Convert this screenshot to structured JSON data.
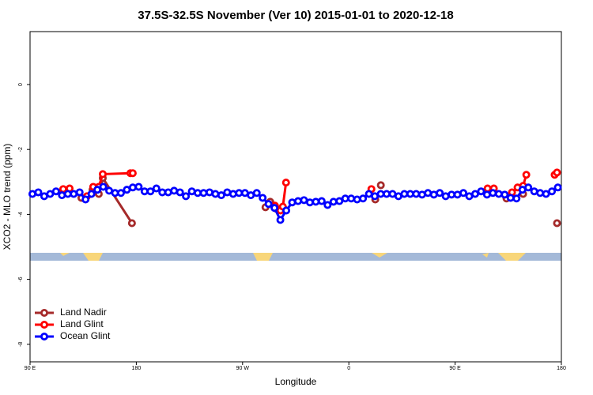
{
  "chart_data": {
    "type": "line",
    "title": "37.5S-32.5S November (Ver 10)   2015-01-01 to 2020-12-18",
    "x_label": "Longitude",
    "y_label": "XCO2 - MLO trend (ppm)",
    "xlim": [
      90,
      540
    ],
    "ylim": [
      -8.54,
      1.63
    ],
    "xticks": [
      {
        "value": 90,
        "label": "90 E"
      },
      180,
      {
        "value": 270,
        "label": "90 W"
      },
      {
        "value": 360,
        "label": "0"
      },
      {
        "value": 450,
        "label": "90 E"
      },
      {
        "value": 540,
        "label": "180"
      }
    ],
    "yticks": [
      0,
      -2,
      -4,
      -6,
      -8
    ],
    "legend": "bottom-left",
    "series": [
      {
        "name": "Land Nadir",
        "color": "#a52a2a",
        "x": [
          118.1,
          null,
          133.5,
          null,
          142.9,
          null,
          148.2,
          151.6,
          176.3,
          null,
          289.4,
          null,
          293.4,
          null,
          298.8,
          null,
          305.5,
          null,
          382.4,
          null,
          387.1,
          null,
          493.5,
          null,
          507.6,
          null,
          536.3
        ],
        "values": [
          -3.24,
          null,
          -3.49,
          null,
          -3.24,
          null,
          -3.37,
          -2.88,
          -4.27,
          null,
          -3.78,
          null,
          -3.61,
          null,
          -3.83,
          null,
          -3.85,
          null,
          -3.54,
          null,
          -3.1,
          null,
          -3.51,
          null,
          -3.37,
          null,
          -4.27
        ]
      },
      {
        "name": "Land Glint",
        "color": "#ff0000",
        "x": [
          118.1,
          null,
          123.5,
          null,
          138.2,
          null,
          143.5,
          null,
          148.2,
          151.6,
          175,
          177,
          null,
          292.1,
          null,
          297.4,
          null,
          302.1,
          null,
          304.1,
          306.8,
          null,
          379.1,
          null,
          477.5,
          null,
          482.8,
          null,
          498.2,
          null,
          502.9,
          null,
          507.6,
          510.3,
          null,
          534.3,
          536.3
        ],
        "values": [
          -3.22,
          null,
          -3.2,
          null,
          -3.44,
          null,
          -3.15,
          null,
          -3.15,
          -2.76,
          -2.73,
          -2.73,
          null,
          -3.68,
          null,
          -3.73,
          null,
          -3.88,
          null,
          -3.76,
          -3.02,
          null,
          -3.22,
          null,
          -3.2,
          null,
          -3.2,
          null,
          -3.32,
          null,
          -3.17,
          null,
          -3.12,
          -2.78,
          null,
          -2.78,
          -2.71
        ]
      },
      {
        "name": "Ocean Glint",
        "color": "#0000ff",
        "x": [
          92,
          97,
          102,
          107,
          112,
          117,
          122,
          127,
          132,
          137,
          142,
          147,
          152,
          157,
          162,
          167,
          172,
          177,
          182,
          187,
          192,
          197,
          202,
          207,
          212,
          217,
          222,
          227,
          232,
          237,
          242,
          247,
          252,
          257,
          262,
          267,
          272,
          277,
          282,
          287,
          292,
          297,
          302,
          307,
          312,
          317,
          322,
          327,
          332,
          337,
          342,
          347,
          352,
          357,
          362,
          367,
          372,
          377,
          382,
          387,
          392,
          397,
          402,
          407,
          412,
          417,
          422,
          427,
          432,
          437,
          442,
          447,
          452,
          457,
          462,
          467,
          472,
          477,
          482,
          487,
          492,
          497,
          502,
          507,
          512,
          517,
          522,
          527,
          532,
          537
        ],
        "values": [
          -3.37,
          -3.32,
          -3.44,
          -3.37,
          -3.29,
          -3.41,
          -3.37,
          -3.37,
          -3.32,
          -3.54,
          -3.37,
          -3.24,
          -3.15,
          -3.27,
          -3.34,
          -3.34,
          -3.24,
          -3.17,
          -3.15,
          -3.29,
          -3.29,
          -3.2,
          -3.32,
          -3.32,
          -3.27,
          -3.32,
          -3.44,
          -3.29,
          -3.34,
          -3.34,
          -3.32,
          -3.37,
          -3.41,
          -3.32,
          -3.37,
          -3.34,
          -3.34,
          -3.41,
          -3.34,
          -3.49,
          -3.68,
          -3.8,
          -4.17,
          -3.88,
          -3.63,
          -3.59,
          -3.56,
          -3.63,
          -3.61,
          -3.59,
          -3.71,
          -3.61,
          -3.59,
          -3.51,
          -3.51,
          -3.54,
          -3.51,
          -3.37,
          -3.44,
          -3.37,
          -3.37,
          -3.37,
          -3.44,
          -3.37,
          -3.37,
          -3.37,
          -3.39,
          -3.34,
          -3.39,
          -3.34,
          -3.44,
          -3.39,
          -3.39,
          -3.34,
          -3.44,
          -3.37,
          -3.29,
          -3.39,
          -3.34,
          -3.37,
          -3.39,
          -3.49,
          -3.51,
          -3.24,
          -3.17,
          -3.29,
          -3.34,
          -3.37,
          -3.29,
          -3.17
        ]
      }
    ]
  }
}
